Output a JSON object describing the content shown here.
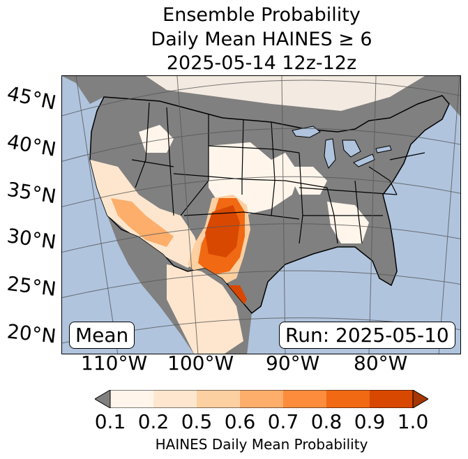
{
  "title": {
    "line1": "Ensemble Probability",
    "line2": "Daily Mean HAINES ≥ 6",
    "line3": "2025-05-14 12z-12z"
  },
  "lat_labels": [
    "45°N",
    "40°N",
    "35°N",
    "30°N",
    "25°N",
    "20°N"
  ],
  "lon_labels": [
    "110°W",
    "100°W",
    "90°W",
    "80°W"
  ],
  "map_boxes": {
    "stat": "Mean",
    "run": "Run: 2025-05-10"
  },
  "colorbar": {
    "label": "HAINES Daily Mean Probability",
    "ticks": [
      "0.1",
      "0.2",
      "0.5",
      "0.6",
      "0.7",
      "0.8",
      "0.9",
      "1.0"
    ],
    "under_color": "#808080",
    "colors": [
      "#fff5eb",
      "#fee6ce",
      "#fdd0a2",
      "#fdae6b",
      "#fd8d3c",
      "#f16913",
      "#d94801"
    ],
    "over_color": "#a63603"
  },
  "map_colors": {
    "ocean": "#b0c4de",
    "lakes": "#b0c4de",
    "land_low": "#808080",
    "prob_0_1": "#fff5eb",
    "prob_0_2": "#fee6ce",
    "prob_0_5": "#fdd0a2",
    "prob_0_6": "#fdae6b",
    "prob_0_7": "#fd8d3c",
    "prob_0_8": "#f16913",
    "prob_0_9": "#d94801",
    "prob_1_0": "#a63603"
  }
}
